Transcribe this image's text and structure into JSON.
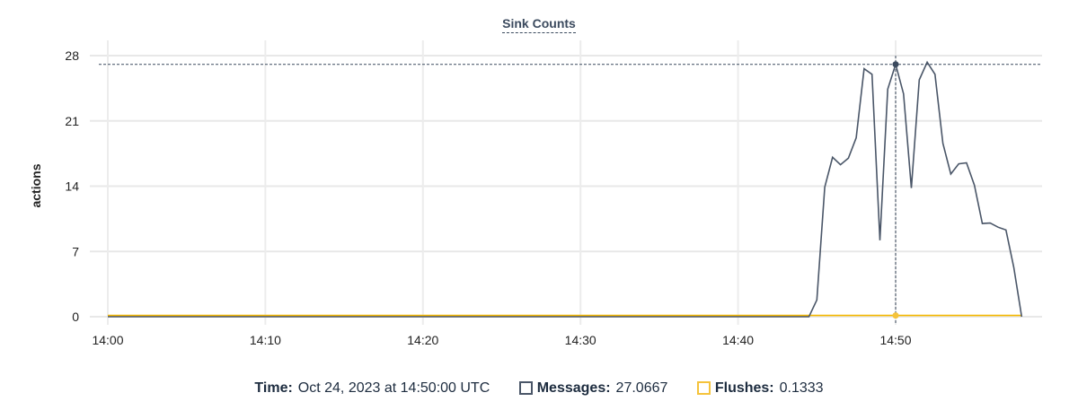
{
  "chart_data": {
    "type": "line",
    "title": "Sink Counts",
    "ylabel": "actions",
    "xlabel": "",
    "ylim": [
      0,
      28
    ],
    "yticks": [
      0,
      7,
      14,
      21,
      28
    ],
    "xticks": [
      "14:00",
      "14:10",
      "14:20",
      "14:30",
      "14:40",
      "14:50"
    ],
    "grid": true,
    "series": [
      {
        "name": "Messages",
        "color": "#4a5668",
        "x": [
          "14:00:00",
          "14:44:30",
          "14:45:00",
          "14:45:30",
          "14:46:00",
          "14:46:30",
          "14:47:00",
          "14:47:30",
          "14:48:00",
          "14:48:30",
          "14:49:00",
          "14:49:30",
          "14:50:00",
          "14:50:30",
          "14:51:00",
          "14:51:30",
          "14:52:00",
          "14:52:30",
          "14:53:00",
          "14:53:30",
          "14:54:00",
          "14:54:30",
          "14:55:00",
          "14:55:30",
          "14:56:00",
          "14:56:30",
          "14:57:00",
          "14:57:30",
          "14:58:00"
        ],
        "y": [
          0,
          0,
          1.8,
          13.9,
          17.1,
          16.3,
          17.0,
          19.2,
          26.6,
          26.0,
          8.2,
          24.4,
          27.0667,
          23.9,
          13.8,
          25.4,
          27.3,
          26.0,
          18.6,
          15.3,
          16.4,
          16.5,
          14.1,
          10.0,
          10.05,
          9.6,
          9.3,
          5.3,
          0
        ]
      },
      {
        "name": "Flushes",
        "color": "#f5b800",
        "x": [
          "14:00:00",
          "14:58:00"
        ],
        "y": [
          0.1333,
          0.1333
        ]
      }
    ]
  },
  "tooltip": {
    "time_label": "Time:",
    "time_value": "Oct 24, 2023 at 14:50:00 UTC",
    "messages_label": "Messages:",
    "messages_value": "27.0667",
    "flushes_label": "Flushes:",
    "flushes_value": "0.1333",
    "hover_time": "14:50:00"
  }
}
